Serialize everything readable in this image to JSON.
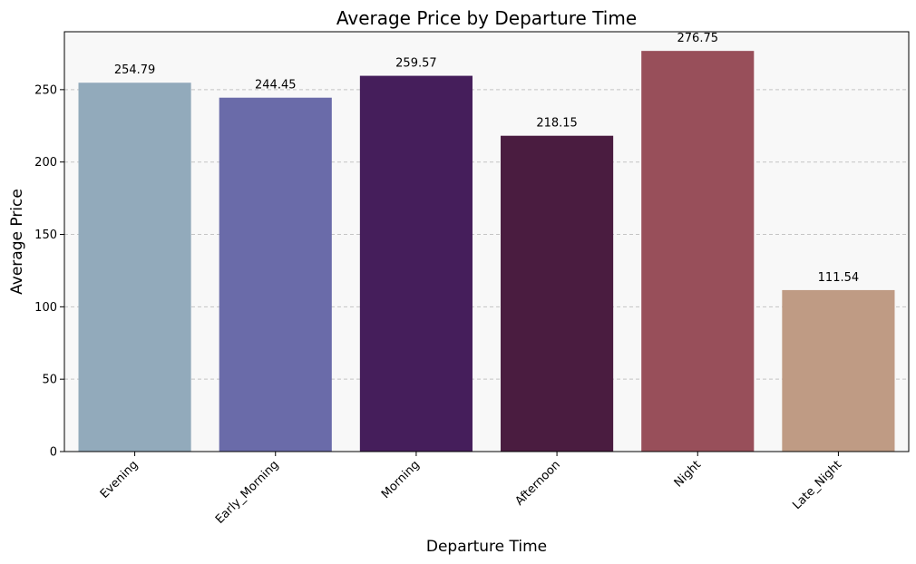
{
  "chart_data": {
    "type": "bar",
    "title": "Average Price by Departure Time",
    "xlabel": "Departure Time",
    "ylabel": "Average Price",
    "categories": [
      "Evening",
      "Early_Morning",
      "Morning",
      "Afternoon",
      "Night",
      "Late_Night"
    ],
    "values": [
      254.79,
      244.45,
      259.57,
      218.15,
      276.75,
      111.54
    ],
    "value_labels": [
      "254.79",
      "244.45",
      "259.57",
      "218.15",
      "276.75",
      "111.54"
    ],
    "colors": [
      "#92aabb",
      "#6a6ba9",
      "#451e5b",
      "#4a1c40",
      "#984f5a",
      "#bf9b84"
    ],
    "ylim": [
      0,
      290
    ],
    "yticks": [
      0,
      50,
      100,
      150,
      200,
      250
    ],
    "ytick_labels": [
      "0",
      "50",
      "100",
      "150",
      "200",
      "250"
    ],
    "grid": "y-dashed",
    "plot_background": "#f8f8f8"
  }
}
